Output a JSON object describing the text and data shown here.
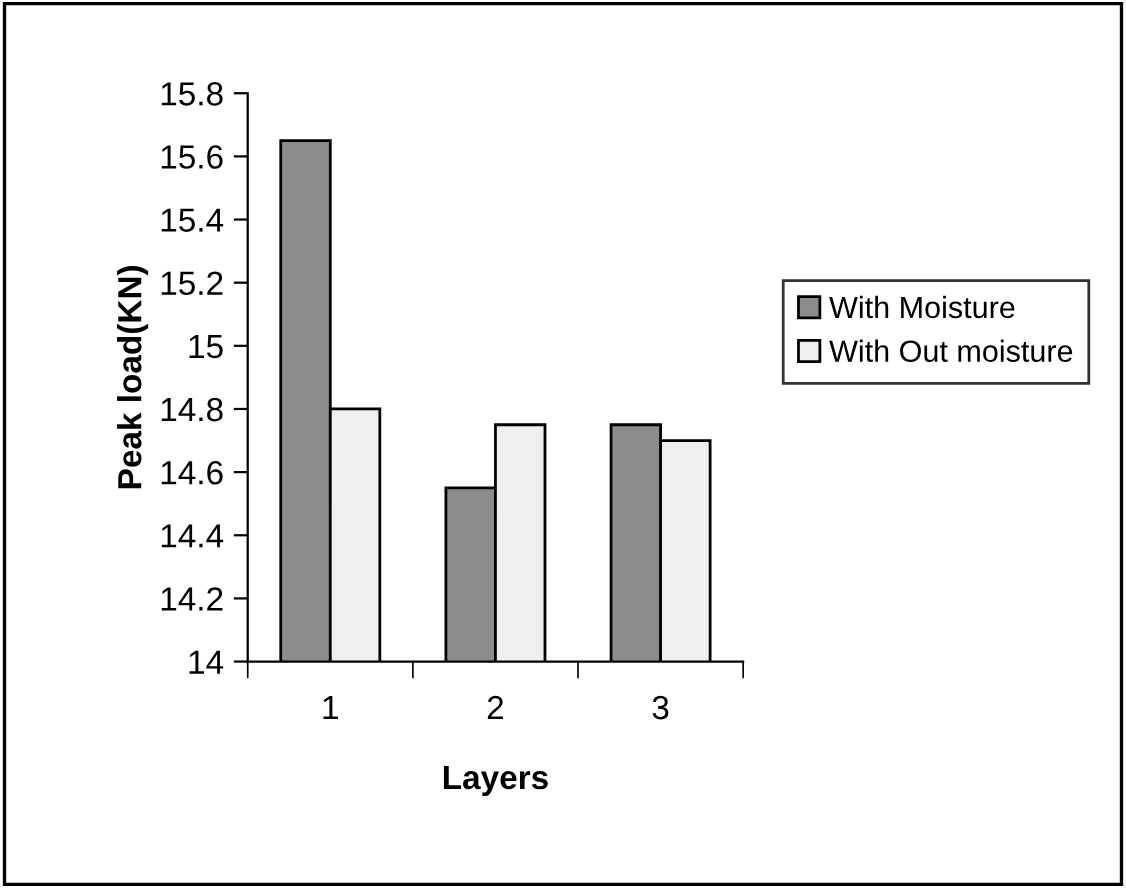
{
  "chart_data": {
    "type": "bar",
    "xlabel": "Layers",
    "ylabel": "Peak load(KN)",
    "categories": [
      "1",
      "2",
      "3"
    ],
    "series": [
      {
        "name": "With Moisture",
        "color": "#8c8c8c",
        "values": [
          15.65,
          14.55,
          14.75
        ]
      },
      {
        "name": "With Out moisture",
        "color": "#efefef",
        "values": [
          14.8,
          14.75,
          14.7
        ]
      }
    ],
    "ylim": [
      14,
      15.8
    ],
    "yticks": [
      14,
      {
        "value": 14.2,
        "label": "14.2"
      },
      {
        "value": 14.4,
        "label": "14.4"
      },
      {
        "value": 14.6,
        "label": "14.6"
      },
      {
        "value": 14.8,
        "label": "14.8"
      },
      15,
      {
        "value": 15.2,
        "label": "15.2"
      },
      {
        "value": 15.4,
        "label": "15.4"
      },
      {
        "value": 15.6,
        "label": "15.6"
      },
      {
        "value": 15.8,
        "label": "15.8"
      }
    ],
    "grid": false,
    "legend": "right"
  }
}
